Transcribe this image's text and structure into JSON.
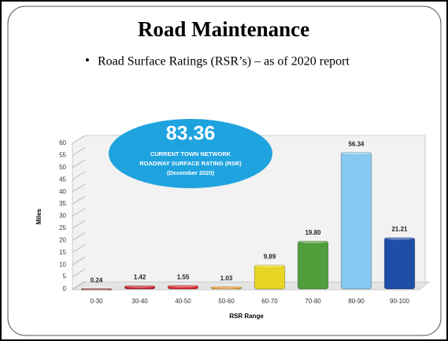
{
  "chart_data": {
    "type": "bar3d",
    "title": "Road Maintenance",
    "subtitle": "Road Surface Ratings (RSR’s) – as of 2020 report",
    "annotation": {
      "value": "83.36",
      "line1": "CURRENT TOWN NETWORK",
      "line2": "ROADWAY SURFACE RATING (RSR)",
      "line3": "(December 2020)"
    },
    "y_label": "Miles",
    "x_label": "RSR Range",
    "categories": [
      "0-30",
      "30-40",
      "40-50",
      "50-60",
      "60-70",
      "70-80",
      "80-90",
      "90-100"
    ],
    "values": [
      0.24,
      1.42,
      1.55,
      1.03,
      9.89,
      19.8,
      56.34,
      21.21
    ],
    "value_labels": [
      "0.24",
      "1.42",
      "1.55",
      "1.03",
      "9.89",
      "19.80",
      "56.34",
      "21.21"
    ],
    "colors": [
      "#8b1c1c",
      "#c8202a",
      "#d8282e",
      "#e8961e",
      "#e8d424",
      "#4e9e3c",
      "#86c8f0",
      "#1f4ea6"
    ],
    "ylim": [
      0,
      60
    ],
    "yticks": [
      0,
      5,
      10,
      15,
      20,
      25,
      30,
      35,
      40,
      45,
      50,
      55,
      60
    ]
  }
}
